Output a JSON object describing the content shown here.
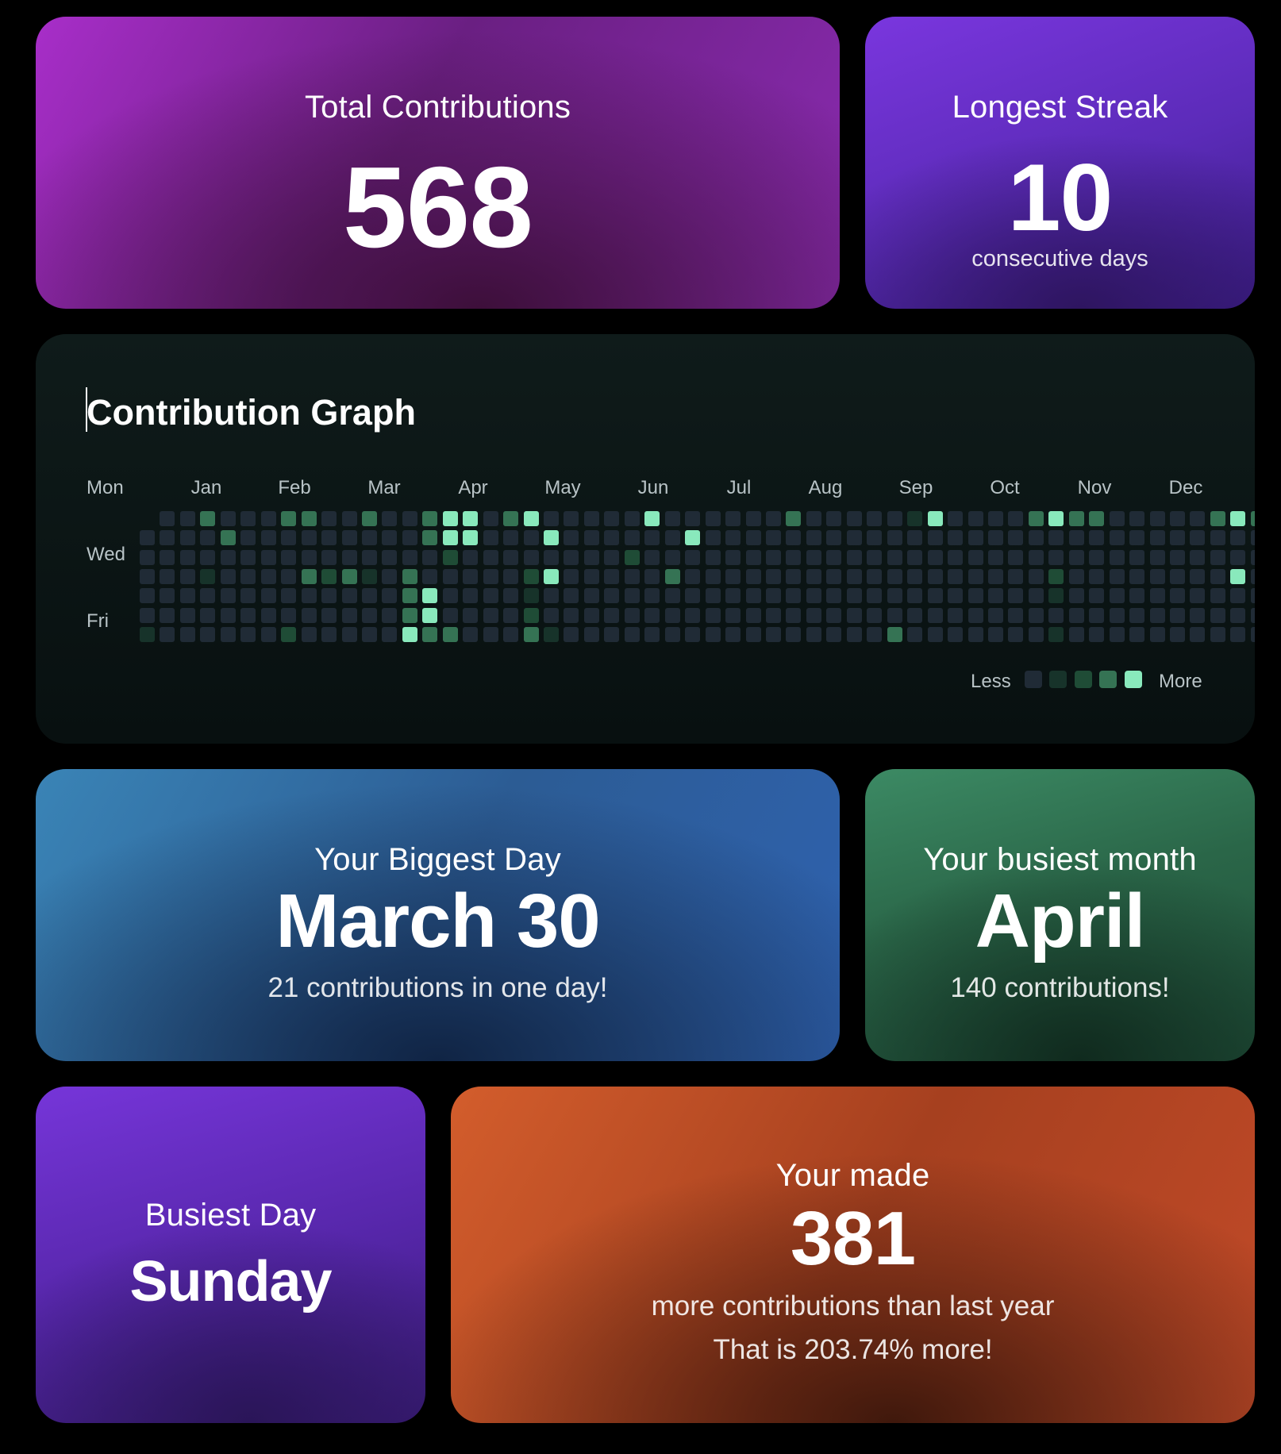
{
  "total": {
    "label": "Total Contributions",
    "value": "568"
  },
  "streak": {
    "label": "Longest Streak",
    "value": "10",
    "unit": "consecutive days"
  },
  "graph": {
    "title": "Contribution Graph",
    "months": [
      "Jan",
      "Feb",
      "Mar",
      "Apr",
      "May",
      "Jun",
      "Jul",
      "Aug",
      "Sep",
      "Oct",
      "Nov",
      "Dec"
    ],
    "day_labels": [
      "Mon",
      "Wed",
      "Fri"
    ],
    "legend_less": "Less",
    "legend_more": "More",
    "levels_by_week": [
      "0000001",
      "0000000",
      "0000000",
      "3001000",
      "0300000",
      "0000000",
      "0000000",
      "3000002",
      "3003000",
      "0002000",
      "0003000",
      "3001000",
      "0000000",
      "0003334",
      "3300443",
      "4420003",
      "4400000",
      "0000000",
      "3000000",
      "4002123",
      "0404001",
      "0000000",
      "0000000",
      "0000000",
      "0020000",
      "4000000",
      "0003000",
      "0400000",
      "0000000",
      "0000000",
      "0000000",
      "0000000",
      "3000000",
      "0000000",
      "0000000",
      "0000000",
      "0000000",
      "0000003",
      "1000000",
      "4000000",
      "0000000",
      "0000000",
      "0000000",
      "0000000",
      "3000000",
      "4002101",
      "3000000",
      "3000000",
      "0000000",
      "0000000",
      "0000000",
      "0000000",
      "0000000",
      "3000000",
      "4004000",
      "3000000",
      "3000000"
    ]
  },
  "biggest_day": {
    "label": "Your Biggest Day",
    "value": "March 30",
    "detail": "21 contributions in one day!"
  },
  "busiest_month": {
    "label": "Your busiest month",
    "value": "April",
    "detail": "140 contributions!"
  },
  "busiest_day": {
    "label": "Busiest Day",
    "value": "Sunday"
  },
  "comparison": {
    "label": "Your made",
    "value": "381",
    "detail": "more contributions than last year",
    "percent_text": "That is 203.74% more!"
  },
  "colors": {
    "level0": "#202b36",
    "level1": "#17332a",
    "level2": "#1f4c36",
    "level3": "#357354",
    "level4": "#89e9bc"
  }
}
